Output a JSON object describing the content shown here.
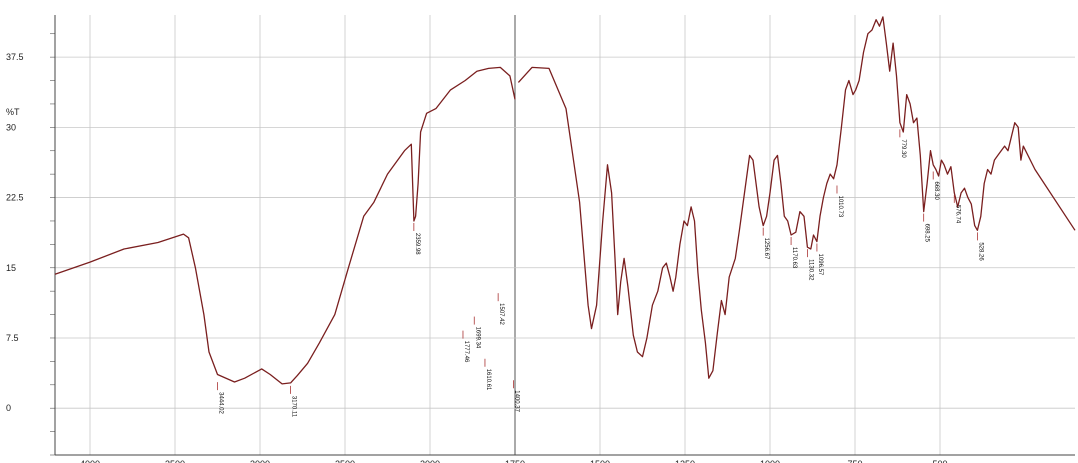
{
  "chart_data": {
    "type": "line",
    "xlabel": "",
    "ylabel": "%T",
    "ylim": [
      -5,
      42
    ],
    "y_ticks": [
      0,
      7.5,
      15,
      22.5,
      30,
      37.5
    ],
    "x_ticks": [
      "4000",
      "3500",
      "3000",
      "2500",
      "2000",
      "1750",
      "1500",
      "1250",
      "1000",
      "750",
      "500"
    ],
    "grid": true,
    "axis_break_at": "2000",
    "line_color": "#7a1f1f",
    "series": [
      {
        "values": [
          [
            4150,
            14.3
          ],
          [
            4000,
            15.6
          ],
          [
            3800,
            17.0
          ],
          [
            3600,
            17.7
          ],
          [
            3450,
            18.6
          ],
          [
            3420,
            18.2
          ],
          [
            3380,
            15.0
          ],
          [
            3330,
            10.0
          ],
          [
            3300,
            6.0
          ],
          [
            3250,
            3.6
          ],
          [
            3150,
            2.8
          ],
          [
            3090,
            3.2
          ],
          [
            2990,
            4.2
          ],
          [
            2940,
            3.6
          ],
          [
            2870,
            2.6
          ],
          [
            2820,
            2.7
          ],
          [
            2780,
            3.5
          ],
          [
            2720,
            4.8
          ],
          [
            2650,
            7.0
          ],
          [
            2560,
            10.0
          ],
          [
            2480,
            15.0
          ],
          [
            2390,
            20.5
          ],
          [
            2330,
            22.0
          ],
          [
            2250,
            25.0
          ],
          [
            2150,
            27.5
          ],
          [
            2110,
            28.2
          ],
          [
            2095,
            20.0
          ],
          [
            2085,
            20.5
          ],
          [
            2070,
            24.0
          ],
          [
            2055,
            29.5
          ],
          [
            2020,
            31.5
          ],
          [
            1960,
            32.0
          ],
          [
            1860,
            34.0
          ],
          [
            1760,
            35.0
          ],
          [
            1680,
            36.0
          ],
          [
            1600,
            36.3
          ],
          [
            1520,
            36.4
          ],
          [
            1455,
            35.5
          ],
          [
            1420,
            33.0
          ],
          [
            1990,
            34.8
          ],
          [
            1950,
            36.4
          ],
          [
            1900,
            36.3
          ],
          [
            1850,
            32.0
          ],
          [
            1810,
            22.0
          ],
          [
            1785,
            11.0
          ],
          [
            1775,
            8.5
          ],
          [
            1760,
            11.0
          ],
          [
            1742,
            20.0
          ],
          [
            1728,
            26.0
          ],
          [
            1716,
            23.0
          ],
          [
            1706,
            16.0
          ],
          [
            1698,
            10.0
          ],
          [
            1689,
            13.5
          ],
          [
            1679,
            16.0
          ],
          [
            1668,
            13.0
          ],
          [
            1652,
            7.8
          ],
          [
            1640,
            6.0
          ],
          [
            1625,
            5.5
          ],
          [
            1612,
            7.5
          ],
          [
            1596,
            11.0
          ],
          [
            1580,
            12.5
          ],
          [
            1566,
            15.0
          ],
          [
            1555,
            15.5
          ],
          [
            1544,
            14.0
          ],
          [
            1535,
            12.5
          ],
          [
            1527,
            14.0
          ],
          [
            1515,
            17.5
          ],
          [
            1503,
            20.0
          ],
          [
            1493,
            19.5
          ],
          [
            1482,
            21.5
          ],
          [
            1472,
            20.0
          ],
          [
            1462,
            14.5
          ],
          [
            1452,
            10.5
          ],
          [
            1440,
            7.0
          ],
          [
            1430,
            3.2
          ],
          [
            1418,
            4.0
          ],
          [
            1405,
            8.0
          ],
          [
            1393,
            11.5
          ],
          [
            1382,
            10.0
          ],
          [
            1370,
            14.0
          ],
          [
            1352,
            16.0
          ],
          [
            1340,
            19.0
          ],
          [
            1325,
            23.0
          ],
          [
            1310,
            27.0
          ],
          [
            1300,
            26.5
          ],
          [
            1282,
            21.5
          ],
          [
            1270,
            19.5
          ],
          [
            1260,
            20.5
          ],
          [
            1250,
            23.0
          ],
          [
            1238,
            26.5
          ],
          [
            1228,
            27.0
          ],
          [
            1218,
            24.0
          ],
          [
            1208,
            20.5
          ],
          [
            1198,
            20.0
          ],
          [
            1188,
            18.5
          ],
          [
            1174,
            18.8
          ],
          [
            1162,
            21.0
          ],
          [
            1150,
            20.5
          ],
          [
            1140,
            17.2
          ],
          [
            1130,
            17.0
          ],
          [
            1122,
            18.5
          ],
          [
            1112,
            17.8
          ],
          [
            1103,
            20.5
          ],
          [
            1093,
            22.5
          ],
          [
            1083,
            24.0
          ],
          [
            1073,
            25.0
          ],
          [
            1063,
            24.5
          ],
          [
            1053,
            26.0
          ],
          [
            1040,
            30.0
          ],
          [
            1028,
            34.0
          ],
          [
            1018,
            35.0
          ],
          [
            1006,
            33.5
          ],
          [
            998,
            34.0
          ],
          [
            988,
            35.0
          ],
          [
            975,
            38.0
          ],
          [
            962,
            40.0
          ],
          [
            950,
            40.4
          ],
          [
            938,
            41.5
          ],
          [
            928,
            40.8
          ],
          [
            918,
            41.8
          ],
          [
            908,
            39.0
          ],
          [
            898,
            36.0
          ],
          [
            888,
            39.0
          ],
          [
            878,
            35.5
          ],
          [
            868,
            30.5
          ],
          [
            858,
            29.5
          ],
          [
            848,
            33.5
          ],
          [
            838,
            32.5
          ],
          [
            828,
            30.5
          ],
          [
            818,
            31.0
          ],
          [
            808,
            27.0
          ],
          [
            798,
            21.0
          ],
          [
            788,
            24.0
          ],
          [
            778,
            27.5
          ],
          [
            770,
            26.0
          ],
          [
            762,
            25.5
          ],
          [
            754,
            24.8
          ],
          [
            746,
            26.5
          ],
          [
            738,
            26.0
          ],
          [
            728,
            25.0
          ],
          [
            718,
            25.8
          ],
          [
            708,
            23.0
          ],
          [
            698,
            21.5
          ],
          [
            688,
            23.0
          ],
          [
            678,
            23.5
          ],
          [
            668,
            22.5
          ],
          [
            658,
            21.8
          ],
          [
            648,
            19.5
          ],
          [
            640,
            19.0
          ],
          [
            630,
            20.5
          ],
          [
            620,
            24.0
          ],
          [
            610,
            25.5
          ],
          [
            600,
            25.0
          ],
          [
            590,
            26.5
          ],
          [
            580,
            27.0
          ],
          [
            570,
            27.5
          ],
          [
            560,
            28.0
          ],
          [
            550,
            27.5
          ],
          [
            540,
            29.0
          ],
          [
            530,
            30.5
          ],
          [
            520,
            30.0
          ],
          [
            512,
            26.5
          ],
          [
            505,
            28.0
          ],
          [
            498,
            25.5
          ],
          [
            490,
            19.0
          ]
        ]
      }
    ],
    "peaks": [
      {
        "label": "3444.02",
        "x": 3250,
        "y": 3.0
      },
      {
        "label": "3170.11",
        "x": 2820,
        "y": 2.6
      },
      {
        "label": "2359.98",
        "x": 2095,
        "y": 20.0
      },
      {
        "label": "1777.46",
        "x": 1775,
        "y": 8.5
      },
      {
        "label": "1699.34",
        "x": 1698,
        "y": 10.0
      },
      {
        "label": "1610.61",
        "x": 1625,
        "y": 5.5
      },
      {
        "label": "1507.42",
        "x": 1535,
        "y": 12.5
      },
      {
        "label": "1400.37",
        "x": 1430,
        "y": 3.2
      },
      {
        "label": "1256.67",
        "x": 1270,
        "y": 19.5
      },
      {
        "label": "1170.63",
        "x": 1188,
        "y": 18.5
      },
      {
        "label": "1130.32",
        "x": 1140,
        "y": 17.2
      },
      {
        "label": "1096.57",
        "x": 1112,
        "y": 17.8
      },
      {
        "label": "1010.73",
        "x": 1053,
        "y": 24.0
      },
      {
        "label": "779.30",
        "x": 868,
        "y": 30.0
      },
      {
        "label": "698.25",
        "x": 798,
        "y": 21.0
      },
      {
        "label": "668.30",
        "x": 770,
        "y": 25.5
      },
      {
        "label": "576.74",
        "x": 708,
        "y": 23.0
      },
      {
        "label": "528.26",
        "x": 640,
        "y": 19.0
      }
    ]
  }
}
